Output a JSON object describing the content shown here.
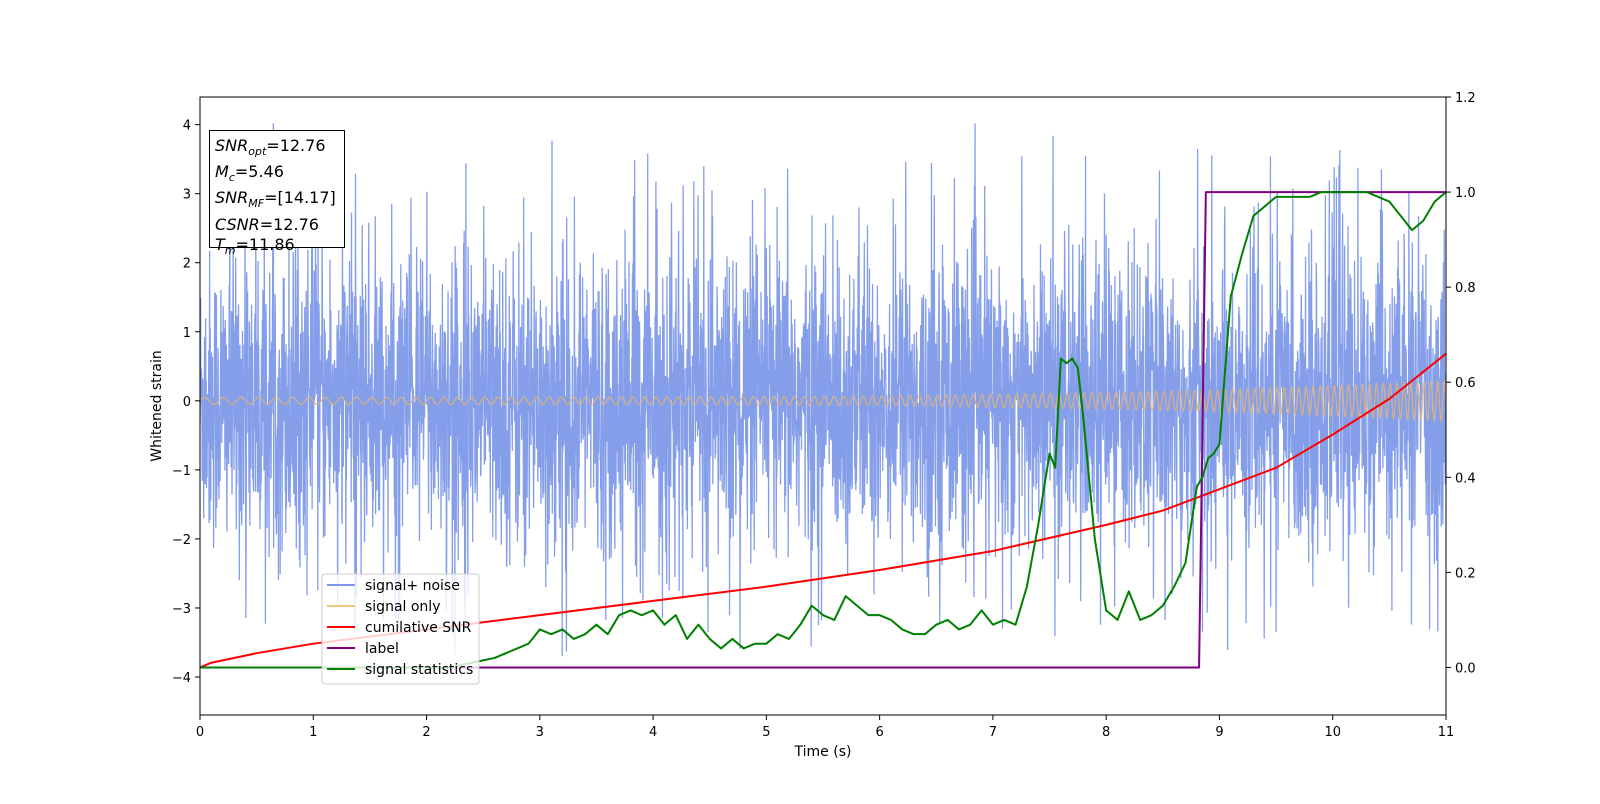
{
  "chart_data": {
    "type": "line",
    "xlabel": "Time (s)",
    "ylabel": "Whitened strain",
    "xlim": [
      0,
      11
    ],
    "ylim": [
      -4.55,
      4.4
    ],
    "y2lim": [
      -0.1,
      1.2
    ],
    "x_ticks": [
      "0",
      "1",
      "2",
      "3",
      "4",
      "5",
      "6",
      "7",
      "8",
      "9",
      "10",
      "11"
    ],
    "y_ticks": [
      {
        "value": 4,
        "label": "4"
      },
      {
        "value": 3,
        "label": "3"
      },
      {
        "value": 2,
        "label": "2"
      },
      {
        "value": 1,
        "label": "1"
      },
      {
        "value": 0,
        "label": "0"
      },
      {
        "value": -1,
        "label": "−1"
      },
      {
        "value": -2,
        "label": "−2"
      },
      {
        "value": -3,
        "label": "−3"
      },
      {
        "value": -4,
        "label": "−4"
      }
    ],
    "y2_ticks": [
      {
        "value": 1.2,
        "label": "1.2"
      },
      {
        "value": 1.0,
        "label": "1.0"
      },
      {
        "value": 0.8,
        "label": "0.8"
      },
      {
        "value": 0.6,
        "label": "0.6"
      },
      {
        "value": 0.4,
        "label": "0.4"
      },
      {
        "value": 0.2,
        "label": "0.2"
      },
      {
        "value": 0.0,
        "label": "0.0"
      }
    ],
    "legend_position": "lower-left",
    "legend": [
      {
        "name": "signal+ noise",
        "color": "#7b96e8"
      },
      {
        "name": "signal only",
        "color": "#f5c97a"
      },
      {
        "name": "cumilative SNR",
        "color": "#ff0000"
      },
      {
        "name": "label",
        "color": "#800080"
      },
      {
        "name": "signal statistics",
        "color": "#008000"
      }
    ],
    "series": [
      {
        "name": "signal+ noise",
        "axis": "left",
        "color": "#7b96e8",
        "kind": "noise",
        "typical_band": [
          -2.2,
          2.3
        ],
        "extremes": [
          -4.15,
          4.02
        ]
      },
      {
        "name": "signal only",
        "axis": "left",
        "color": "#e0b278",
        "kind": "chirp",
        "envelope": {
          "x": [
            0,
            4,
            6,
            8,
            9,
            10,
            11
          ],
          "amp": [
            0.05,
            0.055,
            0.07,
            0.12,
            0.16,
            0.22,
            0.29
          ]
        }
      },
      {
        "name": "cumilative SNR",
        "axis": "right",
        "color": "#ff0000",
        "x": [
          0,
          0.1,
          0.5,
          1,
          2,
          3,
          4,
          5,
          6,
          7,
          8,
          8.5,
          9,
          9.5,
          10,
          10.5,
          11
        ],
        "y": [
          0.0,
          0.01,
          0.03,
          0.05,
          0.08,
          0.11,
          0.14,
          0.17,
          0.205,
          0.245,
          0.3,
          0.33,
          0.375,
          0.42,
          0.49,
          0.565,
          0.66
        ]
      },
      {
        "name": "label",
        "axis": "right",
        "color": "#800080",
        "x": [
          0,
          8.82,
          8.88,
          11
        ],
        "y": [
          0,
          0,
          1,
          1
        ]
      },
      {
        "name": "signal statistics",
        "axis": "right",
        "color": "#008000",
        "x": [
          0,
          2.2,
          2.4,
          2.6,
          2.8,
          2.9,
          3.0,
          3.1,
          3.2,
          3.3,
          3.4,
          3.5,
          3.6,
          3.7,
          3.8,
          3.9,
          4.0,
          4.1,
          4.2,
          4.3,
          4.4,
          4.5,
          4.6,
          4.7,
          4.8,
          4.9,
          5.0,
          5.1,
          5.2,
          5.3,
          5.4,
          5.5,
          5.6,
          5.7,
          5.8,
          5.9,
          6.0,
          6.1,
          6.2,
          6.3,
          6.4,
          6.5,
          6.6,
          6.7,
          6.8,
          6.9,
          7.0,
          7.1,
          7.2,
          7.3,
          7.4,
          7.5,
          7.55,
          7.6,
          7.65,
          7.7,
          7.75,
          7.8,
          7.9,
          8.0,
          8.1,
          8.2,
          8.3,
          8.4,
          8.5,
          8.6,
          8.7,
          8.8,
          8.85,
          8.9,
          8.95,
          9.0,
          9.1,
          9.2,
          9.3,
          9.4,
          9.5,
          9.6,
          9.7,
          9.8,
          9.9,
          10.0,
          10.1,
          10.2,
          10.3,
          10.4,
          10.5,
          10.6,
          10.7,
          10.8,
          10.9,
          11.0
        ],
        "y": [
          0.0,
          0.0,
          0.01,
          0.02,
          0.04,
          0.05,
          0.08,
          0.07,
          0.08,
          0.06,
          0.07,
          0.09,
          0.07,
          0.11,
          0.12,
          0.11,
          0.12,
          0.09,
          0.11,
          0.06,
          0.09,
          0.06,
          0.04,
          0.06,
          0.04,
          0.05,
          0.05,
          0.07,
          0.06,
          0.09,
          0.13,
          0.11,
          0.1,
          0.15,
          0.13,
          0.11,
          0.11,
          0.1,
          0.08,
          0.07,
          0.07,
          0.09,
          0.1,
          0.08,
          0.09,
          0.12,
          0.09,
          0.1,
          0.09,
          0.17,
          0.3,
          0.45,
          0.42,
          0.65,
          0.64,
          0.65,
          0.63,
          0.52,
          0.27,
          0.12,
          0.1,
          0.16,
          0.1,
          0.11,
          0.13,
          0.17,
          0.22,
          0.38,
          0.4,
          0.44,
          0.45,
          0.47,
          0.78,
          0.87,
          0.95,
          0.97,
          0.99,
          0.99,
          0.99,
          0.99,
          1.0,
          1.0,
          1.0,
          1.0,
          1.0,
          0.99,
          0.98,
          0.95,
          0.92,
          0.94,
          0.98,
          1.0
        ]
      }
    ]
  },
  "stats": {
    "snr_opt": {
      "main": "SNR",
      "sub": "opt",
      "value": "=12.76"
    },
    "mc": {
      "main": "M",
      "sub": "c",
      "value": "=5.46"
    },
    "snr_mf": {
      "main": "SNR",
      "sub": "MF",
      "value": "=[14.17]"
    },
    "csnr": {
      "main": "CSNR",
      "value": "=12.76"
    },
    "tm": {
      "main": "T",
      "sub": "m",
      "value": "=11.86"
    }
  }
}
